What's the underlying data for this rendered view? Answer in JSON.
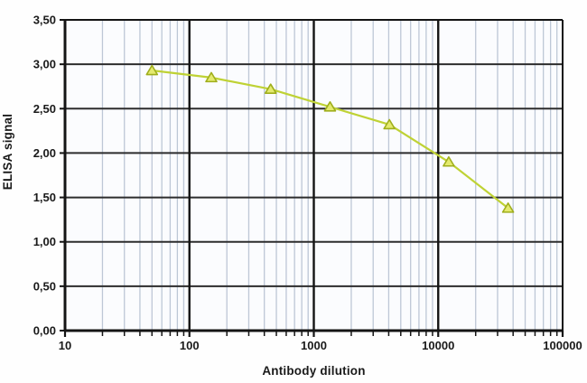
{
  "chart_data": {
    "type": "line",
    "title": "",
    "xlabel": "Antibody dilution",
    "ylabel": "ELISA signal",
    "x_scale": "log",
    "xlim": [
      10,
      100000
    ],
    "ylim": [
      0,
      3.5
    ],
    "x_tick_values": [
      10,
      100,
      1000,
      10000,
      100000
    ],
    "x_tick_labels": [
      "10",
      "100",
      "1000",
      "10000",
      "100000"
    ],
    "y_tick_values": [
      0,
      0.5,
      1,
      1.5,
      2,
      2.5,
      3,
      3.5
    ],
    "y_tick_labels": [
      "0,00",
      "0,50",
      "1,00",
      "1,50",
      "2,00",
      "2,50",
      "3,00",
      "3,50"
    ],
    "grid": {
      "h_major": true,
      "v_major": true,
      "v_minor_log": true
    },
    "legend": "none",
    "series": [
      {
        "name": "ELISA signal",
        "marker": "triangle-up",
        "x": [
          50,
          150,
          450,
          1350,
          4050,
          12150,
          36450
        ],
        "y": [
          2.93,
          2.85,
          2.72,
          2.52,
          2.32,
          1.9,
          1.38
        ]
      }
    ],
    "colors": {
      "series_line": "#bfd234",
      "marker_fill": "#e4ea6e",
      "marker_stroke": "#9fae1c",
      "major_grid": "#2d2d2d",
      "minor_grid": "#bdc7d6",
      "axis": "#141414",
      "plot_bg": "#fbfcfe",
      "text": "#1a1a1a"
    }
  }
}
